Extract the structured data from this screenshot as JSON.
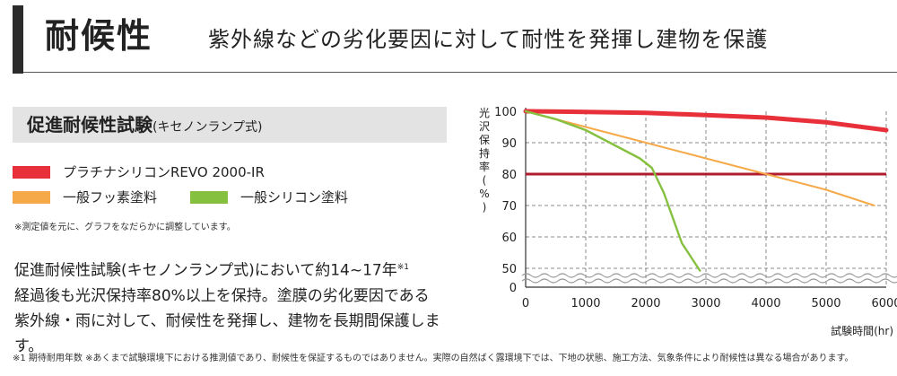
{
  "header": {
    "title": "耐候性",
    "subtitle": "紫外線などの劣化要因に対して耐性を発揮し建物を保護"
  },
  "section": {
    "title": "促進耐候性試験",
    "title_paren": "(キセノンランプ式)"
  },
  "legend": [
    {
      "label": "プラチナシリコンREVO 2000-IR",
      "color": "#e8303a"
    },
    {
      "label": "一般フッ素塗料",
      "color": "#f5a948"
    },
    {
      "label": "一般シリコン塗料",
      "color": "#86c03f"
    }
  ],
  "note": "※測定値を元に、グラフをなだらかに調整しています。",
  "body": {
    "line1": "促進耐候性試験(キセノンランプ式)において約14~17年",
    "footnote_mark": "※1",
    "line2": "経過後も光沢保持率80%以上を保持。塗膜の劣化要因である",
    "line3": "紫外線・雨に対して、耐候性を発揮し、建物を長期間保護します。"
  },
  "footnote": "※1 期待耐用年数 ※あくまで試験環境下における推測値であり、耐候性を保証するものではありません。実際の自然ばく露環境下では、下地の状態、施工方法、気象条件により耐候性は異なる場合があります。",
  "chart_data": {
    "type": "line",
    "ylabel": "光沢保持率(%)",
    "ylabel_chars": [
      "光",
      "沢",
      "保",
      "持",
      "率",
      "(",
      "%",
      ")"
    ],
    "xlabel": "試験時間(hr)",
    "x_ticks": [
      0,
      1000,
      2000,
      3000,
      4000,
      5000,
      6000
    ],
    "y_ticks": [
      100,
      90,
      80,
      70,
      60,
      50,
      0
    ],
    "axis_break": "50 to 0",
    "reference_line": {
      "y": 80,
      "color": "#b01c2e"
    },
    "series": [
      {
        "name": "プラチナシリコンREVO 2000-IR",
        "color": "#e8303a",
        "x": [
          0,
          1000,
          2000,
          3000,
          4000,
          5000,
          6000
        ],
        "y": [
          100,
          99.8,
          99.5,
          98.8,
          98,
          96.5,
          94
        ]
      },
      {
        "name": "一般フッ素塗料",
        "color": "#f5a948",
        "x": [
          0,
          1000,
          2000,
          3000,
          4000,
          5000,
          5800
        ],
        "y": [
          100,
          95,
          90,
          85,
          80,
          75,
          70
        ]
      },
      {
        "name": "一般シリコン塗料",
        "color": "#86c03f",
        "x": [
          0,
          500,
          1000,
          1600,
          1900,
          2100,
          2300,
          2600,
          2900
        ],
        "y": [
          100,
          97.5,
          94,
          88,
          85,
          82,
          74,
          58,
          46
        ]
      }
    ]
  }
}
